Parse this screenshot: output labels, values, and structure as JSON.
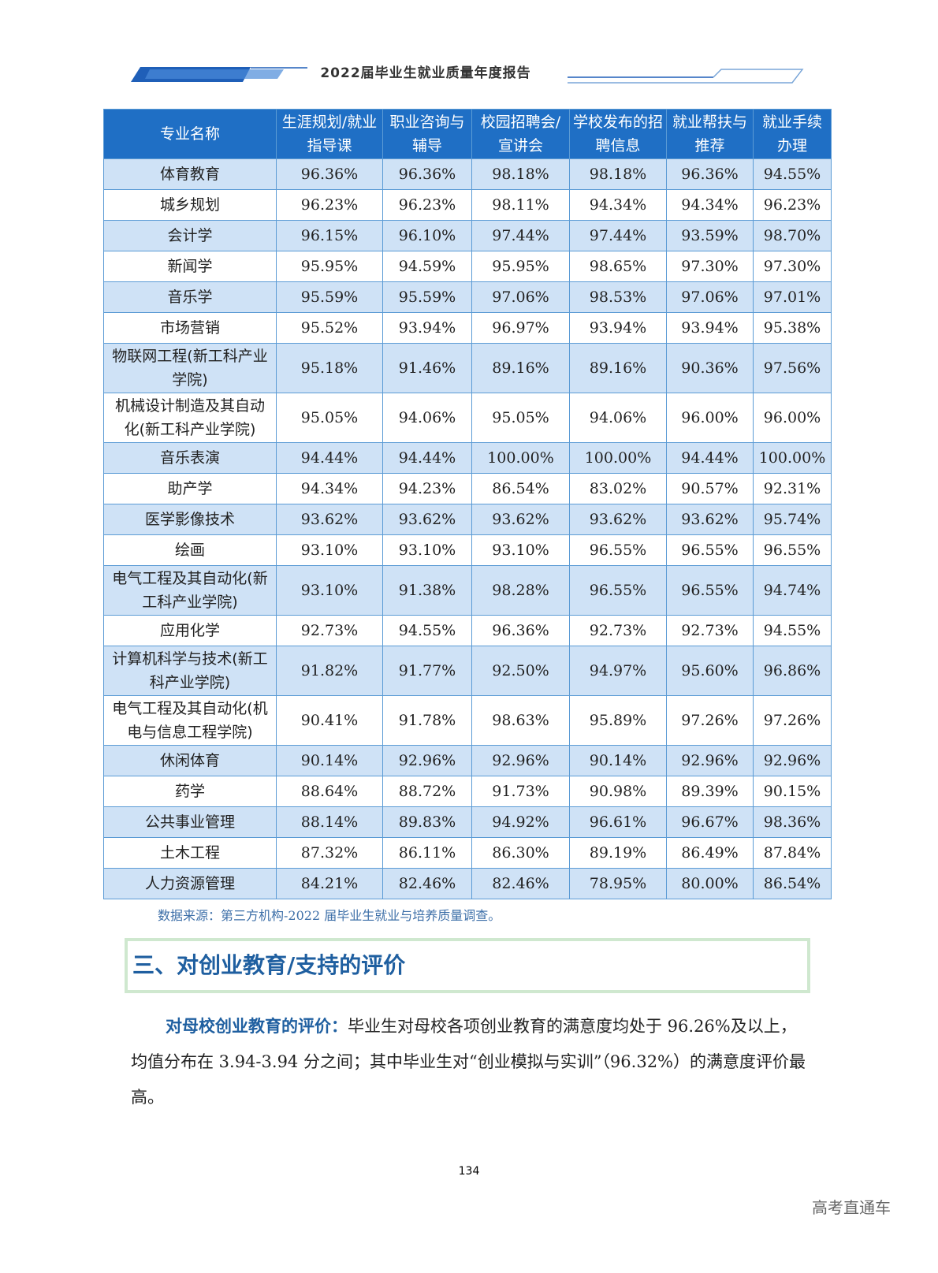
{
  "header": {
    "title": "2022届毕业生就业质量年度报告"
  },
  "table": {
    "columns": [
      "专业名称",
      "生涯规划/就业指导课",
      "职业咨询与辅导",
      "校园招聘会/宣讲会",
      "学校发布的招聘信息",
      "就业帮扶与推荐",
      "就业手续办理"
    ],
    "rows": [
      [
        "体育教育",
        "96.36%",
        "96.36%",
        "98.18%",
        "98.18%",
        "96.36%",
        "94.55%"
      ],
      [
        "城乡规划",
        "96.23%",
        "96.23%",
        "98.11%",
        "94.34%",
        "94.34%",
        "96.23%"
      ],
      [
        "会计学",
        "96.15%",
        "96.10%",
        "97.44%",
        "97.44%",
        "93.59%",
        "98.70%"
      ],
      [
        "新闻学",
        "95.95%",
        "94.59%",
        "95.95%",
        "98.65%",
        "97.30%",
        "97.30%"
      ],
      [
        "音乐学",
        "95.59%",
        "95.59%",
        "97.06%",
        "98.53%",
        "97.06%",
        "97.01%"
      ],
      [
        "市场营销",
        "95.52%",
        "93.94%",
        "96.97%",
        "93.94%",
        "93.94%",
        "95.38%"
      ],
      [
        "物联网工程(新工科产业学院)",
        "95.18%",
        "91.46%",
        "89.16%",
        "89.16%",
        "90.36%",
        "97.56%"
      ],
      [
        "机械设计制造及其自动化(新工科产业学院)",
        "95.05%",
        "94.06%",
        "95.05%",
        "94.06%",
        "96.00%",
        "96.00%"
      ],
      [
        "音乐表演",
        "94.44%",
        "94.44%",
        "100.00%",
        "100.00%",
        "94.44%",
        "100.00%"
      ],
      [
        "助产学",
        "94.34%",
        "94.23%",
        "86.54%",
        "83.02%",
        "90.57%",
        "92.31%"
      ],
      [
        "医学影像技术",
        "93.62%",
        "93.62%",
        "93.62%",
        "93.62%",
        "93.62%",
        "95.74%"
      ],
      [
        "绘画",
        "93.10%",
        "93.10%",
        "93.10%",
        "96.55%",
        "96.55%",
        "96.55%"
      ],
      [
        "电气工程及其自动化(新工科产业学院)",
        "93.10%",
        "91.38%",
        "98.28%",
        "96.55%",
        "96.55%",
        "94.74%"
      ],
      [
        "应用化学",
        "92.73%",
        "94.55%",
        "96.36%",
        "92.73%",
        "92.73%",
        "94.55%"
      ],
      [
        "计算机科学与技术(新工科产业学院)",
        "91.82%",
        "91.77%",
        "92.50%",
        "94.97%",
        "95.60%",
        "96.86%"
      ],
      [
        "电气工程及其自动化(机电与信息工程学院)",
        "90.41%",
        "91.78%",
        "98.63%",
        "95.89%",
        "97.26%",
        "97.26%"
      ],
      [
        "休闲体育",
        "90.14%",
        "92.96%",
        "92.96%",
        "90.14%",
        "92.96%",
        "92.96%"
      ],
      [
        "药学",
        "88.64%",
        "88.72%",
        "91.73%",
        "90.98%",
        "89.39%",
        "90.15%"
      ],
      [
        "公共事业管理",
        "88.14%",
        "89.83%",
        "94.92%",
        "96.61%",
        "96.67%",
        "98.36%"
      ],
      [
        "土木工程",
        "87.32%",
        "86.11%",
        "86.30%",
        "89.19%",
        "86.49%",
        "87.84%"
      ],
      [
        "人力资源管理",
        "84.21%",
        "82.46%",
        "82.46%",
        "78.95%",
        "80.00%",
        "86.54%"
      ]
    ]
  },
  "source": "数据来源：第三方机构-2022 届毕业生就业与培养质量调查。",
  "section": {
    "heading": "三、对创业教育/支持的评价"
  },
  "paragraph": {
    "lead": "对母校创业教育的评价：",
    "body": "毕业生对母校各项创业教育的满意度均处于 96.26%及以上，均值分布在 3.94-3.94 分之间；其中毕业生对“创业模拟与实训”（96.32%）的满意度评价最高。"
  },
  "page_number": "134",
  "watermark": "高考直通车"
}
